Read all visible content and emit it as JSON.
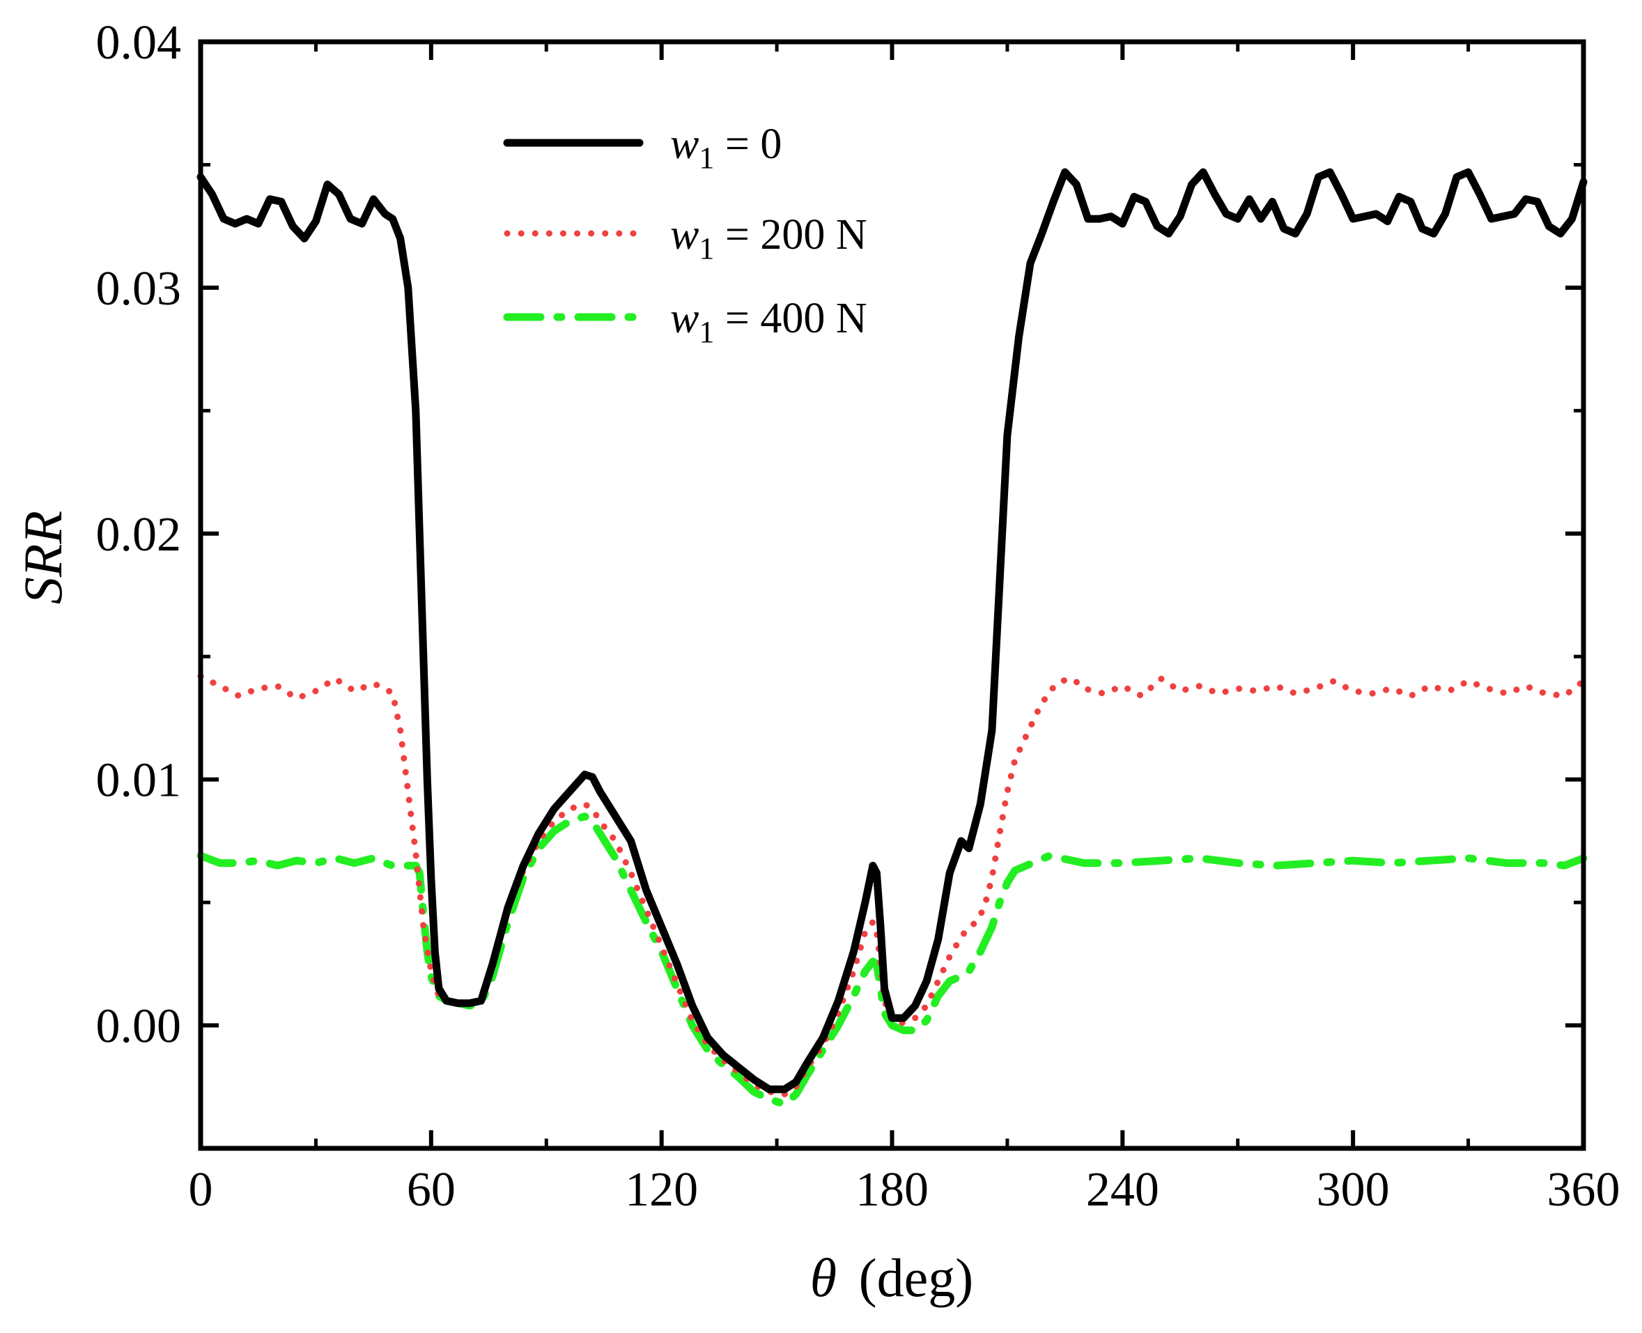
{
  "chart_data": {
    "type": "line",
    "title": "",
    "xlabel_symbol": "θ",
    "xlabel_unit": "(deg)",
    "ylabel": "SRR",
    "xlim": [
      0,
      360
    ],
    "ylim": [
      -0.005,
      0.04
    ],
    "xticks": [
      0,
      60,
      120,
      180,
      240,
      300,
      360
    ],
    "xtick_labels": [
      "0",
      "60",
      "120",
      "180",
      "240",
      "300",
      "360"
    ],
    "yticks": [
      0.0,
      0.01,
      0.02,
      0.03,
      0.04
    ],
    "ytick_labels": [
      "0.00",
      "0.01",
      "0.02",
      "0.03",
      "0.04"
    ],
    "x_minor_step": 30,
    "y_minor_step": 0.005,
    "grid": false,
    "legend_position": "top-center",
    "series": [
      {
        "name": "w1 = 0",
        "label_var": "w",
        "label_sub": "1",
        "label_rest": " = 0",
        "color": "#000000",
        "style": "solid",
        "x": [
          0,
          3,
          6,
          9,
          12,
          15,
          18,
          21,
          24,
          27,
          30,
          33,
          36,
          39,
          42,
          45,
          48,
          50,
          52,
          54,
          56,
          57,
          58,
          59,
          60,
          61,
          62,
          64,
          67,
          70,
          73,
          76,
          80,
          84,
          88,
          92,
          96,
          100,
          102,
          104,
          108,
          112,
          116,
          120,
          124,
          128,
          132,
          136,
          140,
          144,
          148,
          152,
          155,
          158,
          162,
          166,
          170,
          173,
          175,
          176,
          177,
          178,
          180,
          183,
          186,
          189,
          192,
          195,
          198,
          200,
          203,
          206,
          208,
          210,
          213,
          216,
          219,
          222,
          225,
          228,
          231,
          234,
          237,
          240,
          243,
          246,
          249,
          252,
          255,
          258,
          261,
          264,
          267,
          270,
          273,
          276,
          279,
          282,
          285,
          288,
          291,
          294,
          297,
          300,
          303,
          306,
          309,
          312,
          315,
          318,
          321,
          324,
          327,
          330,
          333,
          336,
          339,
          342,
          345,
          348,
          351,
          354,
          357,
          360
        ],
        "values": [
          0.0345,
          0.0338,
          0.0328,
          0.0326,
          0.0328,
          0.0326,
          0.0336,
          0.0335,
          0.0325,
          0.032,
          0.0327,
          0.0342,
          0.0338,
          0.0328,
          0.0326,
          0.0336,
          0.033,
          0.0328,
          0.032,
          0.03,
          0.025,
          0.02,
          0.015,
          0.01,
          0.006,
          0.003,
          0.0015,
          0.001,
          0.0009,
          0.0009,
          0.001,
          0.0025,
          0.0048,
          0.0065,
          0.0078,
          0.0088,
          0.0095,
          0.0102,
          0.0101,
          0.0095,
          0.0085,
          0.0075,
          0.0055,
          0.004,
          0.0025,
          0.0008,
          -0.0005,
          -0.0012,
          -0.0017,
          -0.0022,
          -0.0026,
          -0.0026,
          -0.0023,
          -0.0015,
          -0.0005,
          0.001,
          0.003,
          0.005,
          0.0065,
          0.0062,
          0.004,
          0.0015,
          0.0003,
          0.0003,
          0.0008,
          0.0018,
          0.0035,
          0.0062,
          0.0075,
          0.0072,
          0.009,
          0.012,
          0.018,
          0.024,
          0.028,
          0.031,
          0.0322,
          0.0335,
          0.0347,
          0.0342,
          0.0328,
          0.0328,
          0.0329,
          0.0326,
          0.0337,
          0.0335,
          0.0325,
          0.0322,
          0.0329,
          0.0342,
          0.0347,
          0.0338,
          0.033,
          0.0328,
          0.0336,
          0.0328,
          0.0335,
          0.0324,
          0.0322,
          0.033,
          0.0345,
          0.0347,
          0.0338,
          0.0328,
          0.0329,
          0.033,
          0.0327,
          0.0337,
          0.0335,
          0.0324,
          0.0322,
          0.033,
          0.0345,
          0.0347,
          0.0338,
          0.0328,
          0.0329,
          0.033,
          0.0336,
          0.0335,
          0.0325,
          0.0322,
          0.0328,
          0.0343
        ]
      },
      {
        "name": "w1 = 200 N",
        "label_var": "w",
        "label_sub": "1",
        "label_rest": " = 200 N",
        "color": "#f04040",
        "style": "dotted",
        "x": [
          0,
          5,
          10,
          15,
          20,
          25,
          30,
          35,
          40,
          45,
          48,
          50,
          52,
          54,
          56,
          58,
          60,
          62,
          64,
          67,
          70,
          73,
          76,
          80,
          84,
          88,
          92,
          96,
          100,
          102,
          104,
          108,
          112,
          116,
          120,
          124,
          128,
          132,
          136,
          140,
          144,
          148,
          152,
          155,
          158,
          162,
          166,
          170,
          173,
          175,
          176,
          177,
          178,
          180,
          183,
          186,
          189,
          192,
          195,
          198,
          200,
          202,
          204,
          206,
          208,
          210,
          212,
          215,
          218,
          221,
          224,
          227,
          230,
          235,
          240,
          245,
          250,
          255,
          260,
          265,
          270,
          275,
          280,
          285,
          290,
          295,
          300,
          305,
          310,
          315,
          320,
          325,
          330,
          335,
          340,
          345,
          350,
          355,
          360
        ],
        "values": [
          0.0142,
          0.0138,
          0.0134,
          0.0137,
          0.0138,
          0.0133,
          0.0136,
          0.0141,
          0.0136,
          0.0139,
          0.0137,
          0.0135,
          0.012,
          0.0095,
          0.007,
          0.004,
          0.0022,
          0.0012,
          0.001,
          0.0009,
          0.0009,
          0.001,
          0.0025,
          0.0047,
          0.0063,
          0.0075,
          0.0083,
          0.0088,
          0.009,
          0.0088,
          0.0083,
          0.0075,
          0.0062,
          0.0047,
          0.0032,
          0.0017,
          0.0002,
          -0.0008,
          -0.0014,
          -0.0019,
          -0.0024,
          -0.0027,
          -0.0028,
          -0.0025,
          -0.0017,
          -0.0008,
          0.0005,
          0.0022,
          0.0038,
          0.0042,
          0.0038,
          0.0025,
          0.001,
          0.0002,
          0.0001,
          0.0003,
          0.0008,
          0.0018,
          0.0028,
          0.0036,
          0.004,
          0.0042,
          0.0048,
          0.006,
          0.0078,
          0.0095,
          0.0108,
          0.0118,
          0.0128,
          0.0136,
          0.014,
          0.0141,
          0.0137,
          0.0135,
          0.0138,
          0.0134,
          0.0141,
          0.0136,
          0.0138,
          0.0135,
          0.0137,
          0.0136,
          0.0138,
          0.0135,
          0.0137,
          0.014,
          0.0136,
          0.0135,
          0.0137,
          0.0134,
          0.0138,
          0.0136,
          0.014,
          0.0137,
          0.0135,
          0.0138,
          0.0135,
          0.0134,
          0.014
        ]
      },
      {
        "name": "w1 = 400 N",
        "label_var": "w",
        "label_sub": "1",
        "label_rest": " = 400 N",
        "color": "#22ee22",
        "style": "dashdot",
        "x": [
          0,
          5,
          10,
          15,
          20,
          25,
          30,
          35,
          40,
          45,
          48,
          50,
          52,
          54,
          56,
          57,
          58,
          59,
          60,
          62,
          64,
          67,
          70,
          73,
          76,
          80,
          84,
          88,
          92,
          96,
          100,
          102,
          104,
          108,
          112,
          116,
          120,
          124,
          128,
          132,
          136,
          140,
          144,
          148,
          152,
          155,
          158,
          162,
          166,
          170,
          173,
          175,
          176,
          177,
          178,
          180,
          183,
          186,
          189,
          192,
          195,
          198,
          200,
          203,
          206,
          208,
          210,
          212,
          215,
          218,
          221,
          224,
          227,
          230,
          240,
          250,
          260,
          270,
          280,
          290,
          300,
          310,
          320,
          330,
          340,
          350,
          355,
          360
        ],
        "values": [
          0.0069,
          0.0066,
          0.0066,
          0.0067,
          0.0065,
          0.0067,
          0.0066,
          0.0068,
          0.0066,
          0.0068,
          0.0066,
          0.0065,
          0.0065,
          0.0065,
          0.0065,
          0.0062,
          0.0045,
          0.003,
          0.002,
          0.0012,
          0.001,
          0.0009,
          0.0008,
          0.0009,
          0.002,
          0.0042,
          0.006,
          0.0072,
          0.0079,
          0.0083,
          0.0085,
          0.0083,
          0.0078,
          0.0068,
          0.0055,
          0.0042,
          0.003,
          0.0015,
          0.0,
          -0.001,
          -0.0016,
          -0.0021,
          -0.0027,
          -0.003,
          -0.0032,
          -0.0028,
          -0.002,
          -0.001,
          0.0,
          0.0012,
          0.0022,
          0.0026,
          0.0025,
          0.0015,
          0.0005,
          0.0,
          -0.0002,
          -0.0002,
          0.0002,
          0.0012,
          0.0018,
          0.002,
          0.0022,
          0.003,
          0.004,
          0.005,
          0.0058,
          0.0063,
          0.0065,
          0.0067,
          0.0069,
          0.0068,
          0.0067,
          0.0066,
          0.0066,
          0.0067,
          0.0068,
          0.0066,
          0.0065,
          0.0066,
          0.0067,
          0.0066,
          0.0067,
          0.0068,
          0.0066,
          0.0066,
          0.0065,
          0.0068
        ]
      }
    ]
  }
}
